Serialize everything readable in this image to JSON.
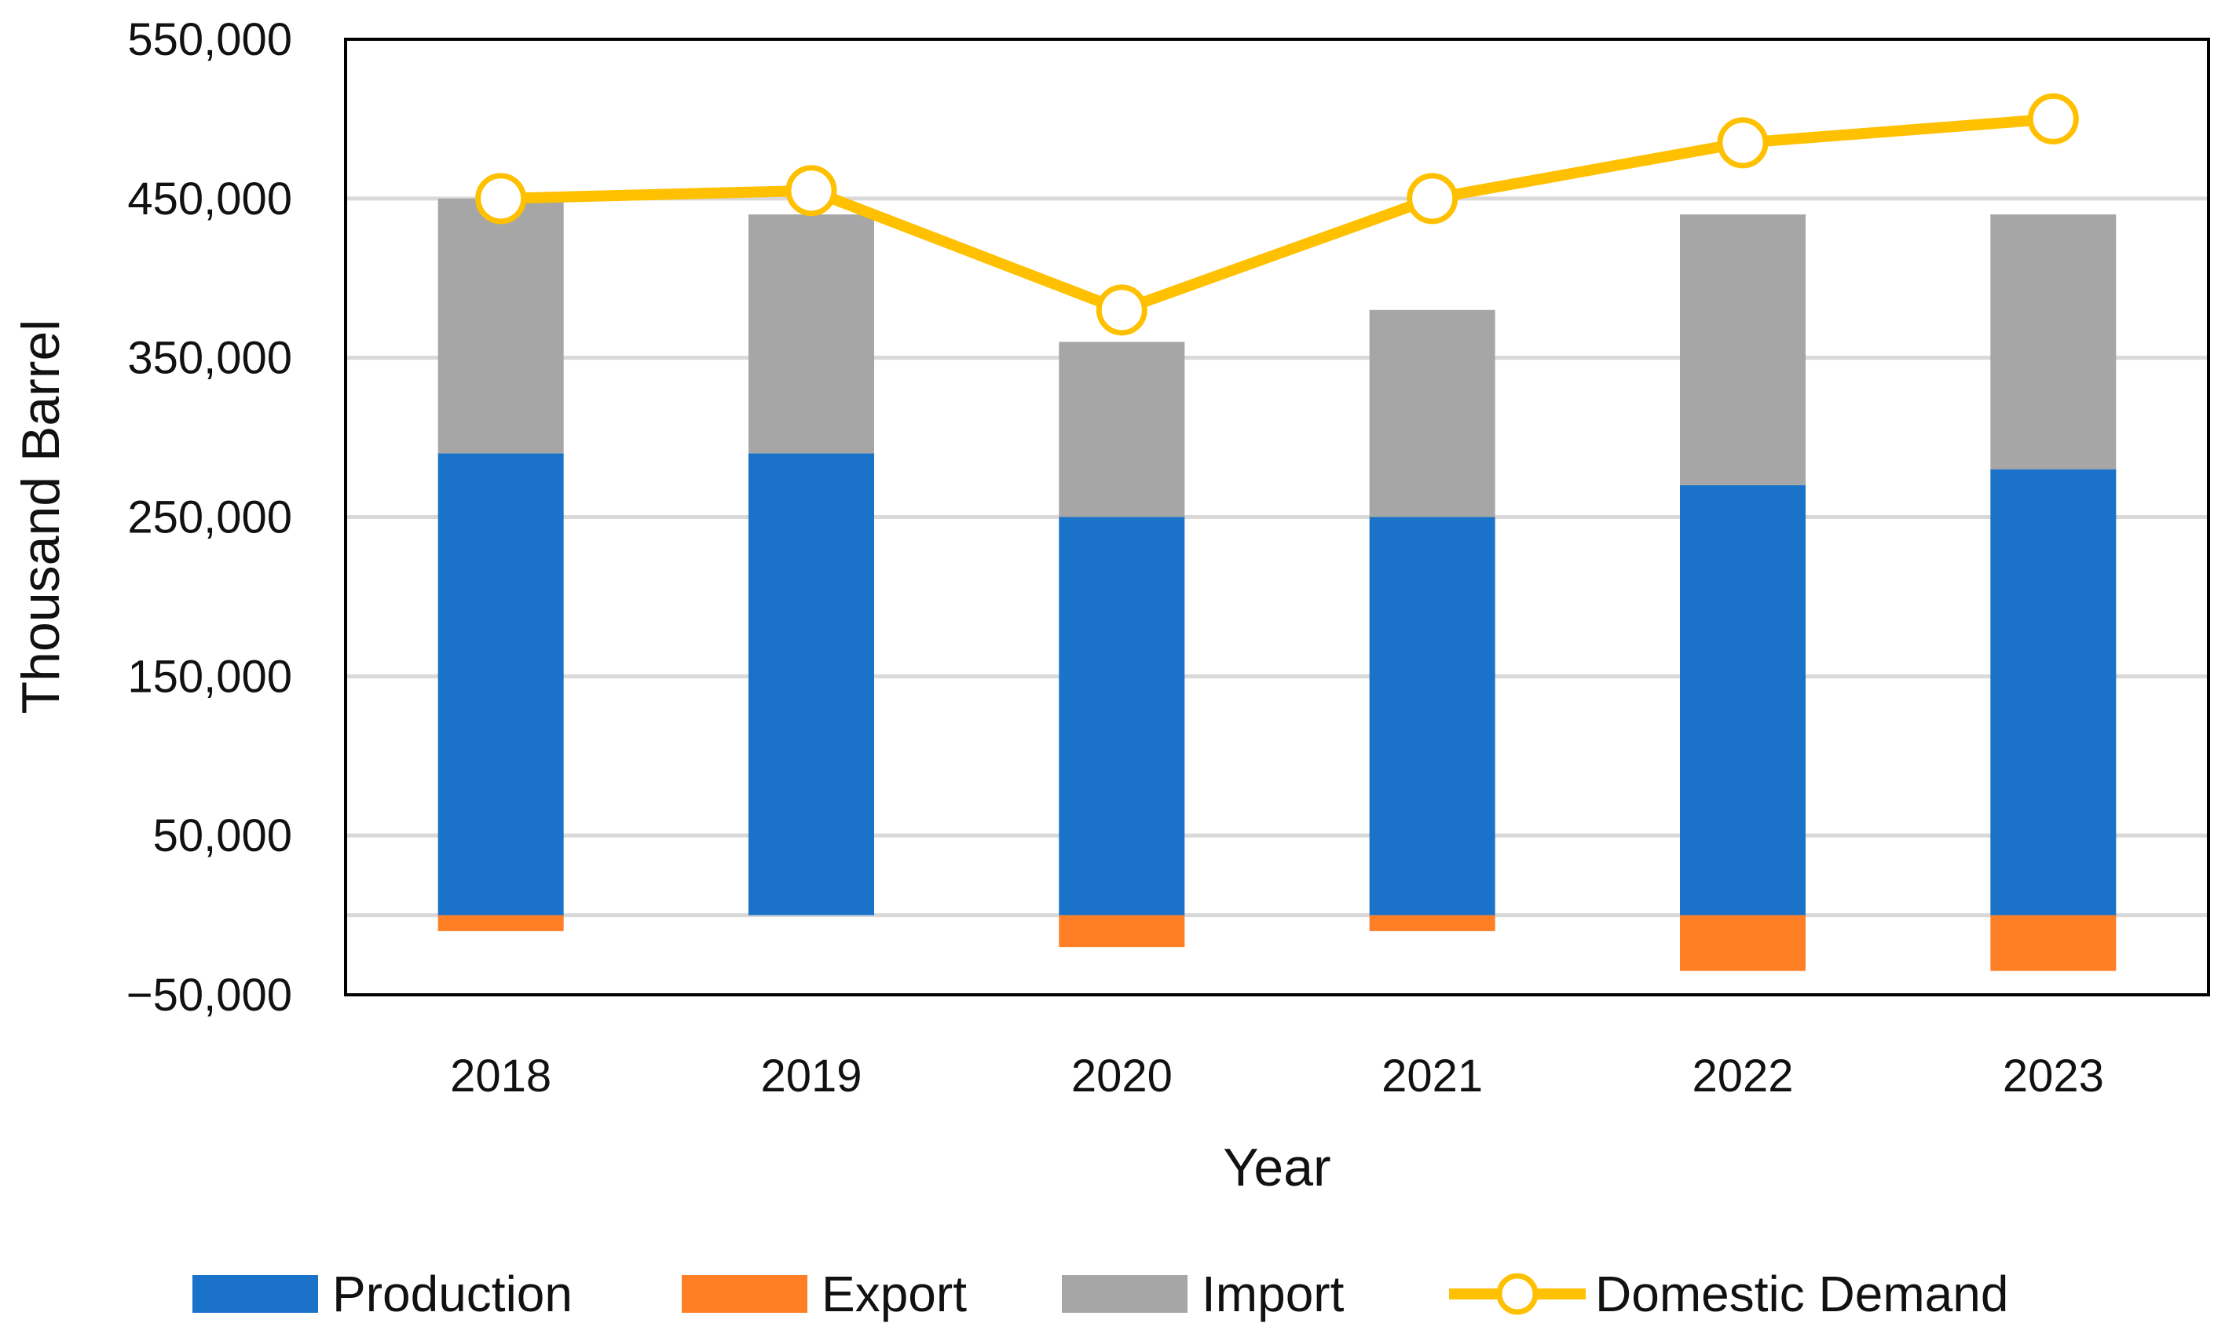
{
  "chart_data": {
    "type": "bar",
    "stacked": true,
    "categories": [
      "2018",
      "2019",
      "2020",
      "2021",
      "2022",
      "2023"
    ],
    "series": [
      {
        "name": "Production",
        "kind": "bar",
        "color": "#1a73c8",
        "values": [
          290000,
          290000,
          250000,
          250000,
          270000,
          280000
        ]
      },
      {
        "name": "Export",
        "kind": "bar",
        "color": "#ff7f27",
        "values": [
          -10000,
          0,
          -20000,
          -10000,
          -35000,
          -35000
        ]
      },
      {
        "name": "Import",
        "kind": "bar",
        "color": "#a6a6a6",
        "values": [
          160000,
          150000,
          110000,
          130000,
          170000,
          160000
        ]
      },
      {
        "name": "Domestic Demand",
        "kind": "line",
        "color": "#ffc000",
        "values": [
          450000,
          455000,
          380000,
          450000,
          485000,
          500000
        ]
      }
    ],
    "xlabel": "Year",
    "ylabel": "Thousand Barrel",
    "ylim": [
      -50000,
      550000
    ],
    "yticks": [
      -50000,
      50000,
      150000,
      250000,
      350000,
      450000,
      550000
    ],
    "ytick_labels": [
      "−50,000",
      "50,000",
      "150,000",
      "250,000",
      "350,000",
      "450,000",
      "550,000"
    ],
    "grid": true,
    "legend_position": "bottom"
  }
}
